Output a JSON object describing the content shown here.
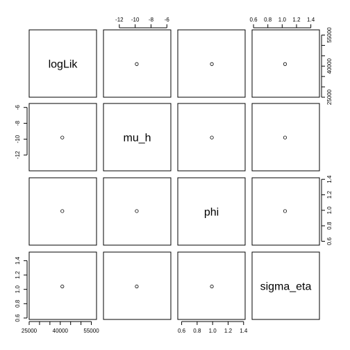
{
  "chart_data": {
    "type": "scatter",
    "variables": [
      "logLik",
      "mu_h",
      "phi",
      "sigma_eta"
    ],
    "point": {
      "logLik": 41000,
      "mu_h": -9.8,
      "phi": 0.99,
      "sigma_eta": 1.04
    },
    "ranges": {
      "logLik": [
        25000,
        57500
      ],
      "mu_h": [
        -14,
        -5.5
      ],
      "phi": [
        0.55,
        1.42
      ],
      "sigma_eta": [
        0.58,
        1.52
      ]
    },
    "ticks": {
      "logLik": {
        "major": [
          "25000",
          "40000",
          "55000"
        ],
        "minor": [
          "30000",
          "35000",
          "45000",
          "50000"
        ]
      },
      "mu_h": {
        "major": [
          "-12",
          "-10",
          "-8",
          "-6"
        ],
        "minor": []
      },
      "phi": {
        "major": [
          "0.6",
          "0.8",
          "1.0",
          "1.2",
          "1.4"
        ],
        "minor": []
      },
      "sigma_eta": {
        "major": [
          "0.6",
          "0.8",
          "1.0",
          "1.2",
          "1.4"
        ],
        "minor": []
      }
    },
    "grid": false,
    "legend": "none"
  }
}
